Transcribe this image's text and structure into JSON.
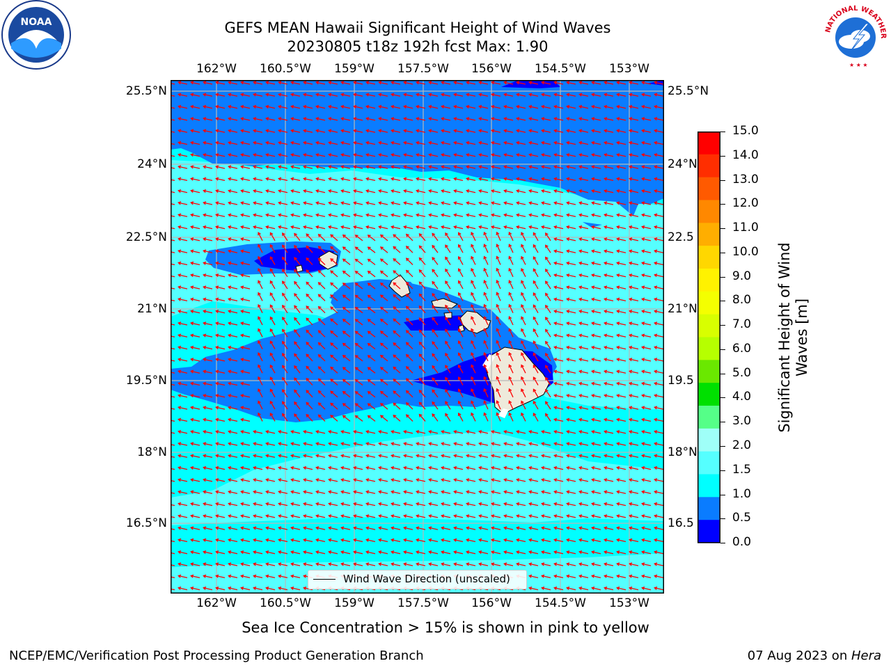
{
  "title": {
    "line1": "GEFS MEAN Hawaii Significant Height of Wind Waves",
    "line2": "20230805 t18z 192h fcst   Max: 1.90"
  },
  "logos": {
    "left": "noaa-logo",
    "right": "national-weather-service-logo",
    "noaa_text": "NOAA",
    "nws_text": "NATIONAL WEATHER SERVICE"
  },
  "map": {
    "lon_ticks": [
      "162°W",
      "160.5°W",
      "159°W",
      "157.5°W",
      "156°W",
      "154.5°W",
      "153°W"
    ],
    "lat_ticks": [
      "25.5°N",
      "24°N",
      "22.5°N",
      "21°N",
      "19.5°N",
      "18°N",
      "16.5°N"
    ],
    "lat_ticks_right": [
      "25.5°N",
      "24°N",
      "22.5",
      "21°N",
      "19.5",
      "18°N",
      "16.5"
    ],
    "lon_range": [
      -163,
      -152.3
    ],
    "lat_range": [
      15.3,
      25.7
    ],
    "legend_label": "Wind Wave Direction (unscaled)",
    "wind_arrow_color": "#ff0000",
    "land_color": "#eeeadb"
  },
  "colorbar": {
    "label_line1": "Significant Height of Wind",
    "label_line2": "Waves [m]",
    "levels": [
      "15.0",
      "14.0",
      "13.0",
      "12.0",
      "11.0",
      "10.0",
      "9.0",
      "8.0",
      "7.0",
      "6.0",
      "5.0",
      "4.0",
      "3.0",
      "2.0",
      "1.5",
      "1.0",
      "0.5",
      "0.0"
    ],
    "colors_top_to_bottom": [
      "#ff0000",
      "#ff2e00",
      "#ff5a00",
      "#ff8800",
      "#ffae00",
      "#ffd700",
      "#fff200",
      "#f4ff00",
      "#d8ff00",
      "#b6ff00",
      "#6ae800",
      "#00e000",
      "#55ff88",
      "#9ffff8",
      "#55ffff",
      "#00ffff",
      "#0a7cff",
      "#0000ff"
    ]
  },
  "ice_note": "Sea Ice Concentration > 15% is shown in pink to yellow",
  "footer": {
    "left": "NCEP/EMC/Verification Post Processing Product Generation Branch",
    "right_date": "07 Aug 2023 on ",
    "right_host": "Hera"
  }
}
